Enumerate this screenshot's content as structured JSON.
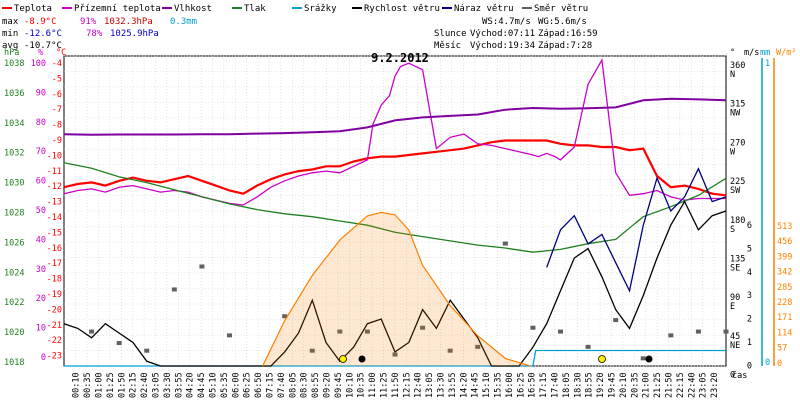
{
  "chart_data": {
    "type": "line",
    "title": "9.2.2012",
    "legend": [
      {
        "label": "Teplota",
        "color": "#ff0000"
      },
      {
        "label": "Přízemní teplota",
        "color": "#cc00cc"
      },
      {
        "label": "Vlhkost",
        "color": "#8000a0"
      },
      {
        "label": "Tlak",
        "color": "#208020"
      },
      {
        "label": "Srážky",
        "color": "#00a0d0"
      },
      {
        "label": "Rychlost větru",
        "color": "#000000"
      },
      {
        "label": "Náraz větru",
        "color": "#000080"
      },
      {
        "label": "Směr větru",
        "color": "#606060"
      }
    ],
    "stats": {
      "max": {
        "label": "max",
        "temp": "-8.9°C",
        "hum": "91%",
        "press": "1032.3hPa",
        "rain": "0.3mm"
      },
      "min": {
        "label": "min",
        "temp": "-12.6°C",
        "hum": "78%",
        "press": "1025.9hPa"
      },
      "avg": {
        "label": "avg",
        "temp": "-10.7°C"
      }
    },
    "wind_info": {
      "ws": "WS:4.7m/s",
      "wg": "WG:5.6m/s"
    },
    "sun": {
      "label": "Slunce",
      "rise": "Východ:07:11",
      "set": "Západ:16:59"
    },
    "moon": {
      "label": "Měsíc",
      "rise": "Východ:19:34",
      "set": "Západ:7:28"
    },
    "axes": {
      "hpa": {
        "label": "hPa",
        "ticks": [
          "1038",
          "1036",
          "1034",
          "1032",
          "1030",
          "1028",
          "1026",
          "1024",
          "1022",
          "1020",
          "1018"
        ],
        "color": "#208020"
      },
      "pct": {
        "label": "%",
        "ticks": [
          "100",
          "90",
          "80",
          "70",
          "60",
          "50",
          "40",
          "30",
          "20",
          "10",
          "0"
        ],
        "color": "#cc00cc"
      },
      "celsius": {
        "label": "°C",
        "ticks": [
          "-4",
          "-5",
          "-6",
          "-7",
          "-8",
          "-9",
          "-10",
          "-11",
          "-12",
          "-13",
          "-14",
          "-15",
          "-16",
          "-17",
          "-18",
          "-19",
          "-20",
          "-21",
          "-22",
          "-23"
        ],
        "color": "#ff0000"
      },
      "dir": {
        "label": "°",
        "ticks": [
          {
            "deg": "360",
            "dir": "N"
          },
          {
            "deg": "315",
            "dir": "NW"
          },
          {
            "deg": "270",
            "dir": "W"
          },
          {
            "deg": "225",
            "dir": "SW"
          },
          {
            "deg": "180",
            "dir": "S"
          },
          {
            "deg": "135",
            "dir": "SE"
          },
          {
            "deg": "90",
            "dir": "E"
          },
          {
            "deg": "45",
            "dir": "NE"
          },
          {
            "deg": "0",
            "dir": ""
          }
        ]
      },
      "ms": {
        "label": "m/s",
        "ticks": [
          "6",
          "5",
          "4",
          "3",
          "2",
          "1",
          "0"
        ]
      },
      "mm": {
        "label": "mm",
        "ticks": [
          "1",
          "0"
        ],
        "color": "#00a0d0"
      },
      "wm2": {
        "label": "W/m²",
        "ticks": [
          "513",
          "456",
          "399",
          "342",
          "285",
          "228",
          "171",
          "114",
          "57",
          "0"
        ],
        "color": "#ff8000"
      },
      "x_label": "čas",
      "x_ticks": [
        "00:10",
        "00:35",
        "01:00",
        "01:25",
        "01:50",
        "02:15",
        "02:40",
        "03:05",
        "03:30",
        "03:55",
        "04:20",
        "04:45",
        "05:10",
        "05:35",
        "06:00",
        "06:25",
        "06:50",
        "07:15",
        "07:40",
        "08:05",
        "08:30",
        "08:55",
        "09:20",
        "09:45",
        "10:10",
        "10:35",
        "11:00",
        "11:25",
        "11:50",
        "12:15",
        "12:40",
        "13:05",
        "13:30",
        "13:55",
        "14:20",
        "14:45",
        "15:10",
        "15:35",
        "16:00",
        "16:25",
        "16:50",
        "17:15",
        "17:40",
        "18:05",
        "18:30",
        "18:55",
        "19:20",
        "19:45",
        "20:10",
        "20:35",
        "21:00",
        "21:25",
        "21:50",
        "22:15",
        "22:40",
        "23:05",
        "23:20"
      ]
    },
    "x_range_hours": [
      0,
      24
    ],
    "series": [
      {
        "name": "Teplota",
        "unit": "°C",
        "color": "#ff0000",
        "x": [
          0,
          0.5,
          1,
          1.5,
          2,
          2.5,
          3,
          3.5,
          4,
          4.5,
          5,
          5.5,
          6,
          6.5,
          7,
          7.5,
          8,
          8.5,
          9,
          9.5,
          10,
          10.5,
          11,
          11.5,
          12,
          12.5,
          13,
          13.5,
          14,
          14.5,
          15,
          15.5,
          16,
          16.5,
          17,
          17.5,
          18,
          18.5,
          19,
          19.5,
          20,
          20.5,
          21,
          21.5,
          22,
          22.5,
          23,
          23.5,
          24
        ],
        "y": [
          -11.9,
          -11.7,
          -11.6,
          -11.8,
          -11.5,
          -11.3,
          -11.5,
          -11.6,
          -11.4,
          -11.2,
          -11.5,
          -11.8,
          -12.1,
          -12.3,
          -11.8,
          -11.4,
          -11.1,
          -10.9,
          -10.8,
          -10.6,
          -10.6,
          -10.3,
          -10.1,
          -10.0,
          -10.0,
          -9.9,
          -9.8,
          -9.7,
          -9.6,
          -9.5,
          -9.3,
          -9.1,
          -9.0,
          -9.0,
          -9.0,
          -9.0,
          -9.2,
          -9.3,
          -9.3,
          -9.4,
          -9.4,
          -9.6,
          -9.5,
          -11.2,
          -11.9,
          -11.8,
          -12.0,
          -12.3,
          -12.4
        ]
      },
      {
        "name": "Přízemní teplota",
        "unit": "°C",
        "color": "#cc00cc",
        "x": [
          0,
          0.5,
          1,
          1.5,
          2,
          2.5,
          3,
          3.5,
          4,
          4.5,
          5,
          5.5,
          6,
          6.5,
          7,
          7.5,
          8,
          8.5,
          9,
          9.5,
          10,
          10.5,
          11,
          11.2,
          11.5,
          11.8,
          12,
          12.2,
          12.5,
          13,
          13.5,
          14,
          14.5,
          15,
          15.5,
          16,
          16.5,
          17,
          17.2,
          17.5,
          17.8,
          18,
          18.5,
          19,
          19.5,
          20,
          20.5,
          21,
          21.5,
          22,
          22.5,
          23,
          23.5,
          24
        ],
        "y": [
          -12.3,
          -12.1,
          -12.0,
          -12.2,
          -11.9,
          -11.8,
          -12.0,
          -12.2,
          -12.1,
          -12.2,
          -12.5,
          -12.7,
          -12.9,
          -13.0,
          -12.5,
          -11.9,
          -11.5,
          -11.2,
          -11.0,
          -10.9,
          -11.0,
          -10.6,
          -10.2,
          -8.0,
          -6.8,
          -6.2,
          -5.0,
          -4.4,
          -4.2,
          -4.6,
          -9.5,
          -8.8,
          -8.6,
          -9.2,
          -9.3,
          -9.5,
          -9.7,
          -9.9,
          -10.0,
          -9.8,
          -10.0,
          -10.2,
          -9.4,
          -5.5,
          -4.0,
          -11.0,
          -12.4,
          -12.3,
          -12.1,
          -12.5,
          -12.7,
          -12.6,
          -12.6,
          -12.6
        ]
      },
      {
        "name": "Vlhkost",
        "unit": "%",
        "color": "#8000a0",
        "x": [
          0,
          1,
          2,
          3,
          4,
          5,
          6,
          7,
          8,
          9,
          10,
          11,
          12,
          13,
          14,
          15,
          16,
          17,
          18,
          19,
          20,
          21,
          22,
          23,
          24
        ],
        "y": [
          78.5,
          78.3,
          78.4,
          78.4,
          78.4,
          78.5,
          78.5,
          78.7,
          78.9,
          79.2,
          79.5,
          80.8,
          83.2,
          84.2,
          84.7,
          85.2,
          86.8,
          87.4,
          87.1,
          87.3,
          87.6,
          90.0,
          90.5,
          90.3,
          90.0
        ]
      },
      {
        "name": "Tlak",
        "unit": "hPa",
        "color": "#208020",
        "x": [
          0,
          1,
          2,
          3,
          4,
          5,
          6,
          7,
          8,
          9,
          10,
          11,
          12,
          13,
          14,
          15,
          16,
          17,
          18,
          19,
          20,
          21,
          22,
          23,
          24
        ],
        "y": [
          1032.3,
          1031.9,
          1031.3,
          1030.9,
          1030.4,
          1029.9,
          1029.4,
          1029.0,
          1028.7,
          1028.5,
          1028.2,
          1027.9,
          1027.4,
          1027.1,
          1026.8,
          1026.5,
          1026.3,
          1026.0,
          1026.2,
          1026.6,
          1026.9,
          1028.5,
          1029.2,
          1030.0,
          1031.2
        ]
      },
      {
        "name": "Srážky",
        "unit": "mm",
        "color": "#00a0d0",
        "x": [
          0,
          17.0,
          17.1,
          17.3,
          24
        ],
        "y": [
          0,
          0,
          0.3,
          0.3,
          0.3
        ]
      },
      {
        "name": "Rychlost větru",
        "unit": "m/s",
        "color": "#000000",
        "x": [
          0,
          0.5,
          1,
          1.5,
          2,
          2.5,
          3,
          3.5,
          4,
          4.5,
          5,
          5.5,
          6,
          6.5,
          7,
          7.5,
          8,
          8.5,
          9,
          9.5,
          10,
          10.5,
          11,
          11.5,
          12,
          12.5,
          13,
          13.5,
          14,
          14.5,
          15,
          15.5,
          16,
          16.5,
          17,
          17.5,
          18,
          18.5,
          19,
          19.5,
          20,
          20.5,
          21,
          21.5,
          22,
          22.5,
          23,
          23.5,
          24
        ],
        "y": [
          0.9,
          0.8,
          0.6,
          0.9,
          0.7,
          0.5,
          0.1,
          0.0,
          0.0,
          0.0,
          0.0,
          0.0,
          0.0,
          0.0,
          0.0,
          0.0,
          0.3,
          0.7,
          1.4,
          0.5,
          0.1,
          0.4,
          0.9,
          1.0,
          0.3,
          0.5,
          1.2,
          0.8,
          1.4,
          1.0,
          0.6,
          0.0,
          0.0,
          0.0,
          0.4,
          0.9,
          1.6,
          2.3,
          2.5,
          1.9,
          1.2,
          0.8,
          1.5,
          2.3,
          3.0,
          3.5,
          2.9,
          3.2,
          3.3
        ]
      },
      {
        "name": "Náraz větru",
        "unit": "m/s",
        "color": "#000080",
        "x": [
          17.5,
          18,
          18.5,
          19,
          19.5,
          20,
          20.5,
          21,
          21.5,
          22,
          22.5,
          23,
          23.5,
          24
        ],
        "y": [
          2.1,
          2.9,
          3.2,
          2.6,
          2.8,
          2.2,
          1.6,
          3.0,
          4.0,
          3.3,
          3.6,
          4.2,
          3.5,
          3.6
        ]
      },
      {
        "name": "Sluneční záření",
        "unit": "W/m²",
        "color": "#ff8000",
        "x": [
          7.2,
          8,
          9,
          10,
          11,
          11.5,
          12,
          12.5,
          13,
          14,
          15,
          16,
          16.9
        ],
        "y": [
          0,
          90,
          180,
          250,
          298,
          305,
          300,
          270,
          200,
          120,
          60,
          15,
          0
        ]
      },
      {
        "name": "Směr větru",
        "unit": "°",
        "color": "#606060",
        "x": [
          1,
          2,
          3,
          4,
          5,
          6,
          8,
          9,
          10,
          11,
          12,
          13,
          14,
          15,
          16,
          17,
          18,
          19,
          20,
          21,
          22,
          23,
          24
        ],
        "y": [
          45,
          30,
          20,
          100,
          130,
          40,
          65,
          20,
          45,
          45,
          15,
          50,
          20,
          25,
          160,
          50,
          45,
          25,
          60,
          10,
          40,
          45,
          45
        ]
      }
    ]
  }
}
